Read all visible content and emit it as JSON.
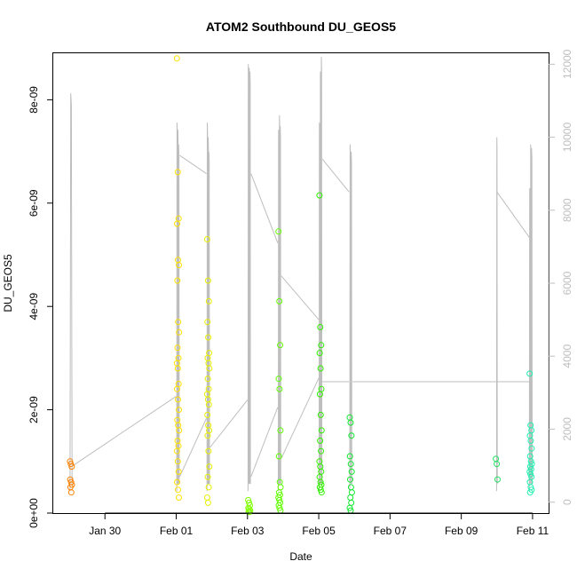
{
  "chart_data": {
    "type": "scatter",
    "title": "ATOM2 Southbound DU_GEOS5",
    "xlabel": "Date",
    "ylabel": "DU_GEOS5",
    "x_ticks": [
      {
        "day": 30,
        "label": "Jan 30"
      },
      {
        "day": 32,
        "label": "Feb 01"
      },
      {
        "day": 34,
        "label": "Feb 03"
      },
      {
        "day": 36,
        "label": "Feb 05"
      },
      {
        "day": 38,
        "label": "Feb 07"
      },
      {
        "day": 40,
        "label": "Feb 09"
      },
      {
        "day": 42,
        "label": "Feb 11"
      }
    ],
    "xlim": [
      28.55,
      42.45
    ],
    "ylim": [
      0,
      8.9e-09
    ],
    "y_ticks": [
      {
        "v": 0,
        "label": "0e+00"
      },
      {
        "v": 2e-09,
        "label": "2e-09"
      },
      {
        "v": 4e-09,
        "label": "4e-09"
      },
      {
        "v": 6e-09,
        "label": "6e-09"
      },
      {
        "v": 8e-09,
        "label": "8e-09"
      }
    ],
    "y2lim": [
      -300,
      12300
    ],
    "y2_ticks": [
      {
        "v": 0,
        "label": "0"
      },
      {
        "v": 2000,
        "label": "2000"
      },
      {
        "v": 4000,
        "label": "4000"
      },
      {
        "v": 6000,
        "label": "6000"
      },
      {
        "v": 8000,
        "label": "8000"
      },
      {
        "v": 10000,
        "label": "10000"
      },
      {
        "v": 12000,
        "label": "12000"
      }
    ],
    "clusters": [
      {
        "day": 29.05,
        "color": "#ff8000",
        "y": [
          1e-09,
          9.5e-10,
          9e-10,
          6.5e-10,
          6e-10,
          5.5e-10,
          5e-10,
          4e-10
        ]
      },
      {
        "day": 32.05,
        "color": "#ffe000",
        "y": [
          8.8e-09,
          6.6e-09,
          5.7e-09,
          5.6e-09,
          4.9e-09,
          4.8e-09,
          4.5e-09,
          3.7e-09,
          3.5e-09,
          3.2e-09,
          3e-09,
          2.9e-09,
          2.8e-09,
          2.5e-09,
          2.4e-09,
          2.2e-09,
          2e-09,
          1.8e-09,
          1.7e-09,
          1.6e-09,
          1.4e-09,
          1.3e-09,
          1.2e-09,
          1e-09,
          8e-10,
          6e-10,
          4.5e-10,
          3e-10
        ]
      },
      {
        "day": 32.9,
        "color": "#e8f000",
        "y": [
          5.3e-09,
          4.5e-09,
          4.1e-09,
          3.7e-09,
          3.4e-09,
          3.1e-09,
          3e-09,
          2.9e-09,
          2.8e-09,
          2.6e-09,
          2.4e-09,
          2.3e-09,
          2.2e-09,
          2.1e-09,
          1.9e-09,
          1.7e-09,
          1.6e-09,
          1.5e-09,
          1.2e-09,
          9e-10,
          7e-10,
          5e-10,
          3e-10,
          2e-10
        ]
      },
      {
        "day": 34.05,
        "color": "#80ff00",
        "y": [
          2.5e-10,
          2e-10,
          1.5e-10,
          1e-10,
          8e-11,
          5e-11,
          3e-11,
          2e-11
        ]
      },
      {
        "day": 34.9,
        "color": "#60ff00",
        "y": [
          5.45e-09,
          4.1e-09,
          3.25e-09,
          2.6e-09,
          2.4e-09,
          1.6e-09,
          1.1e-09,
          6e-10,
          5e-10,
          4e-10,
          3.5e-10,
          3e-10,
          2.5e-10,
          2e-10,
          1.5e-10,
          1e-10,
          5e-11
        ]
      },
      {
        "day": 36.05,
        "color": "#30f000",
        "y": [
          6.15e-09,
          3.6e-09,
          3.25e-09,
          3.1e-09,
          2.8e-09,
          2.4e-09,
          2.3e-09,
          1.9e-09,
          1.6e-09,
          1.4e-09,
          1.2e-09,
          1e-09,
          9e-10,
          8e-10,
          7e-10,
          6e-10,
          5.5e-10,
          5e-10,
          4.5e-10,
          4e-10
        ]
      },
      {
        "day": 36.9,
        "color": "#10e830",
        "y": [
          1.85e-09,
          1.75e-09,
          1.5e-09,
          1.1e-09,
          9.5e-10,
          8e-10,
          6.5e-10,
          5e-10,
          4e-10,
          3e-10,
          2e-10,
          1e-10,
          5e-11
        ]
      },
      {
        "day": 41.0,
        "color": "#20e060",
        "y": [
          1.05e-09,
          9.5e-10,
          6.5e-10
        ]
      },
      {
        "day": 41.95,
        "color": "#20f0b0",
        "y": [
          2.7e-09,
          1.7e-09,
          1.6e-09,
          1.5e-09,
          1.4e-09,
          1.25e-09,
          1.1e-09,
          1e-09,
          9.5e-10,
          9e-10,
          8.5e-10,
          8e-10,
          7.5e-10,
          7e-10,
          6e-10,
          5e-10,
          4.5e-10,
          4e-10
        ]
      }
    ],
    "altitude_color": "#bebebe",
    "altitude_profiles": [
      {
        "day": 29.05,
        "width": 0.06,
        "peaks": [
          11200
        ]
      },
      {
        "day": 32.05,
        "width": 0.07,
        "peaks": [
          10400,
          10200,
          9800
        ]
      },
      {
        "day": 32.9,
        "width": 0.07,
        "peaks": [
          10400,
          10000,
          9600
        ]
      },
      {
        "day": 34.05,
        "width": 0.07,
        "peaks": [
          12000,
          11900,
          11800
        ]
      },
      {
        "day": 34.9,
        "width": 0.07,
        "peaks": [
          10200,
          10600,
          10300
        ]
      },
      {
        "day": 36.05,
        "width": 0.08,
        "peaks": [
          10400,
          11800,
          12200
        ]
      },
      {
        "day": 36.9,
        "width": 0.06,
        "peaks": [
          9800,
          9600
        ]
      },
      {
        "day": 41.0,
        "width": 0.02,
        "peaks": [
          10000
        ]
      },
      {
        "day": 41.95,
        "width": 0.08,
        "peaks": [
          8600,
          9800,
          9700
        ]
      }
    ],
    "altitude_transits": [
      [
        [
          29.1,
          1000
        ],
        [
          32.0,
          2900
        ]
      ],
      [
        [
          32.1,
          9500
        ],
        [
          32.85,
          9000
        ]
      ],
      [
        [
          32.1,
          700
        ],
        [
          32.85,
          2300
        ]
      ],
      [
        [
          32.95,
          1500
        ],
        [
          34.0,
          2800
        ]
      ],
      [
        [
          34.1,
          9000
        ],
        [
          34.85,
          7100
        ]
      ],
      [
        [
          34.1,
          700
        ],
        [
          34.85,
          2600
        ]
      ],
      [
        [
          34.95,
          6200
        ],
        [
          36.0,
          5000
        ]
      ],
      [
        [
          34.95,
          1200
        ],
        [
          36.0,
          3400
        ]
      ],
      [
        [
          36.1,
          9400
        ],
        [
          36.85,
          8500
        ]
      ],
      [
        [
          36.1,
          3300
        ],
        [
          36.85,
          3300
        ]
      ],
      [
        [
          36.95,
          3300
        ],
        [
          41.95,
          3300
        ]
      ],
      [
        [
          41.0,
          8500
        ],
        [
          41.95,
          7200
        ]
      ]
    ]
  }
}
